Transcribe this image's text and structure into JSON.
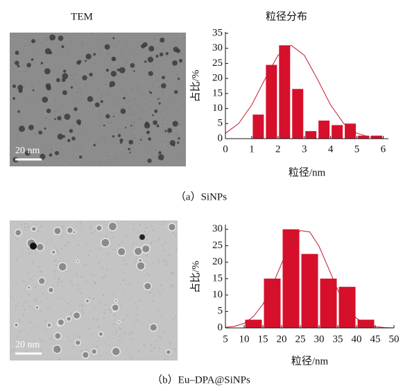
{
  "headers": {
    "left": "TEM",
    "right": "粒径分布"
  },
  "captions": [
    "（a）SiNPs",
    "（b）Eu–DPA@SiNPs"
  ],
  "scale_bars": [
    "20 nm",
    "20 nm"
  ],
  "chart_data": [
    {
      "type": "histogram",
      "xlabel": "粒径/nm",
      "ylabel": "占比/%",
      "color": "#d6102b",
      "bins": [
        1,
        1.5,
        2,
        2.5,
        3,
        3.5,
        4,
        4.5,
        5,
        5.5,
        6
      ],
      "values": [
        8,
        24.5,
        31,
        16.5,
        2.5,
        6,
        4.5,
        5,
        1,
        1
      ],
      "curve": {
        "color": "#c0182e",
        "x": [
          0,
          0.5,
          1,
          1.5,
          2,
          2.5,
          3,
          3.5,
          4,
          4.5,
          5,
          5.5,
          6
        ],
        "y": [
          1.8,
          5.0,
          11.2,
          19.7,
          27.7,
          31,
          27.7,
          19.7,
          11.2,
          5.0,
          1.8,
          0.5,
          0.1
        ]
      },
      "xlim": [
        0,
        6.2
      ],
      "xticks": [
        0,
        1,
        2,
        3,
        4,
        5,
        6
      ],
      "ylim": [
        0,
        35
      ],
      "yticks": [
        0,
        5,
        10,
        15,
        20,
        25,
        30,
        35
      ]
    },
    {
      "type": "histogram",
      "xlabel": "粒径/nm",
      "ylabel": "占比/%",
      "color": "#d6102b",
      "bins": [
        10,
        15,
        20,
        25,
        30,
        35,
        40,
        45
      ],
      "values": [
        2.5,
        15,
        30,
        22.5,
        15,
        12.5,
        2.5
      ],
      "curve": {
        "color": "#c0182e",
        "x": [
          5,
          7.5,
          10,
          12.5,
          15,
          17.5,
          20,
          22.5,
          25,
          27.5,
          30,
          32.5,
          35,
          37.5,
          40,
          42.5,
          45,
          47.5,
          50
        ],
        "y": [
          0.2,
          0.5,
          1.4,
          3.5,
          7.2,
          12.8,
          19.6,
          26.0,
          29.6,
          29.2,
          24.8,
          18.2,
          11.5,
          6.3,
          2.9,
          1.2,
          0.4,
          0.1,
          0.0
        ]
      },
      "xlim": [
        5,
        50
      ],
      "xticks": [
        5,
        10,
        15,
        20,
        25,
        30,
        35,
        40,
        45,
        50
      ],
      "ylim": [
        0,
        31
      ],
      "yticks": [
        0,
        5,
        10,
        15,
        20,
        25,
        30
      ]
    }
  ]
}
